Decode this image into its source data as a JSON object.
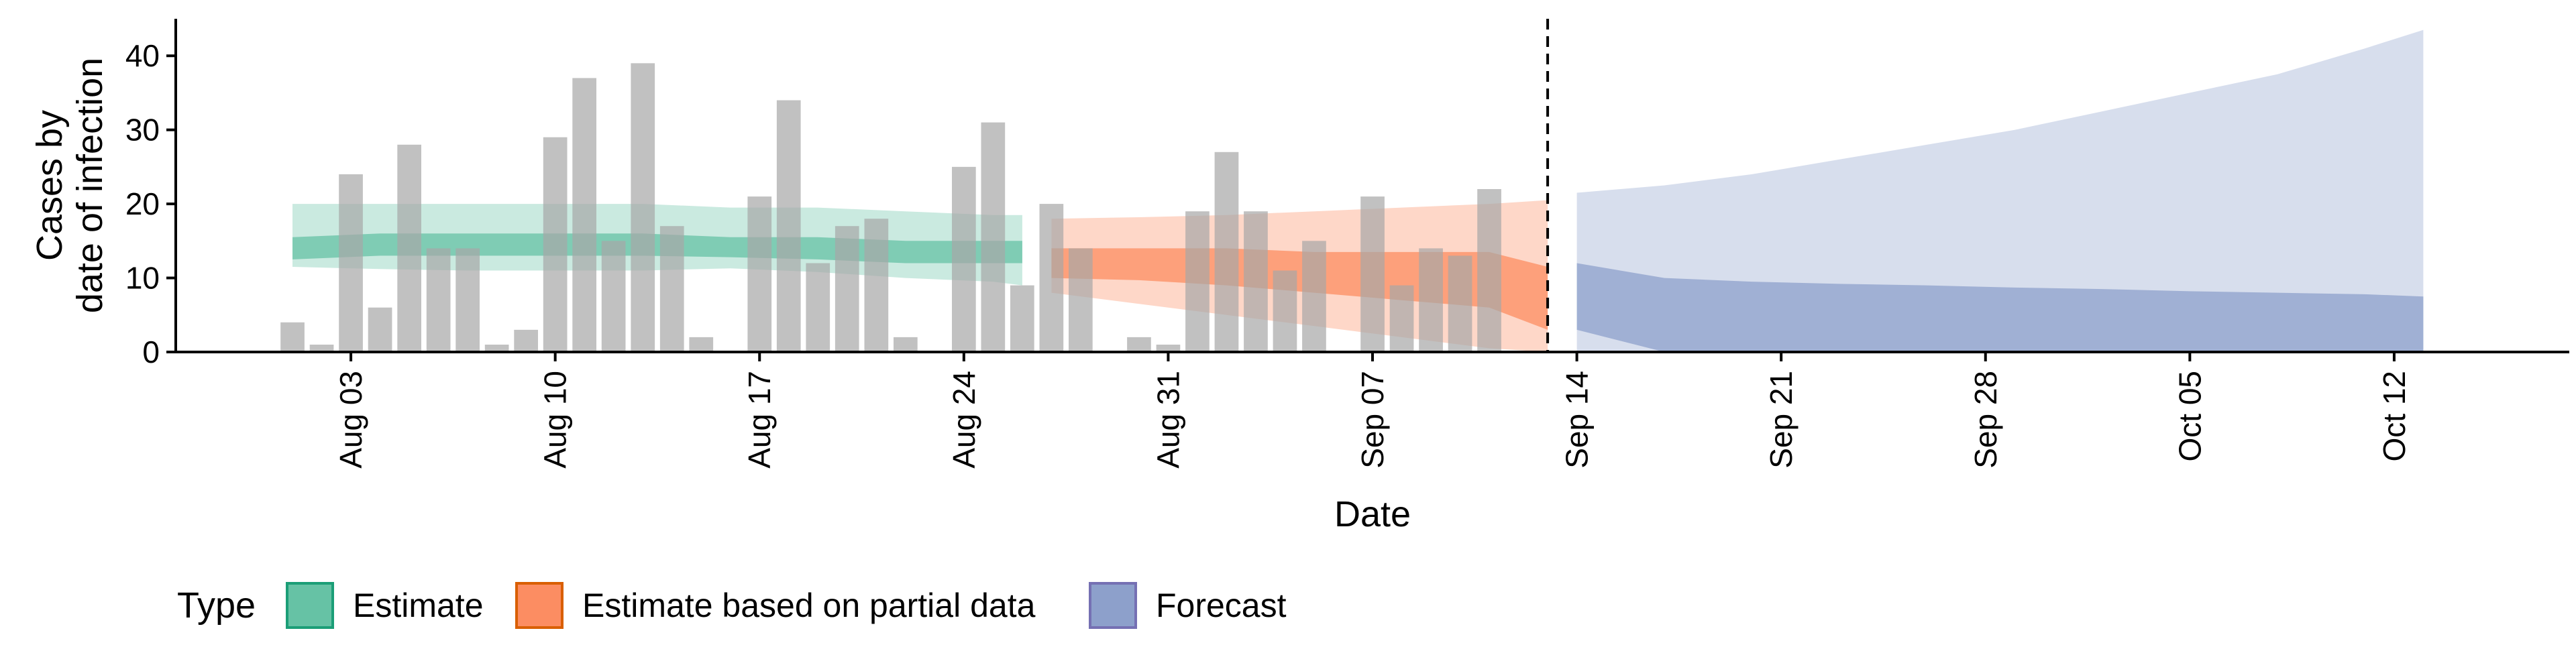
{
  "chart_data": {
    "type": "bar",
    "xlabel": "Date",
    "ylabel_lines": [
      "Cases by",
      "date of infection"
    ],
    "ylim": [
      0,
      45
    ],
    "y_ticks": [
      0,
      10,
      20,
      30,
      40
    ],
    "x_range": [
      "2024-07-28",
      "2024-10-18"
    ],
    "x_ticks": [
      {
        "date": "2024-08-03",
        "label": "Aug 03"
      },
      {
        "date": "2024-08-10",
        "label": "Aug 10"
      },
      {
        "date": "2024-08-17",
        "label": "Aug 17"
      },
      {
        "date": "2024-08-24",
        "label": "Aug 24"
      },
      {
        "date": "2024-08-31",
        "label": "Aug 31"
      },
      {
        "date": "2024-09-07",
        "label": "Sep 07"
      },
      {
        "date": "2024-09-14",
        "label": "Sep 14"
      },
      {
        "date": "2024-09-21",
        "label": "Sep 21"
      },
      {
        "date": "2024-09-28",
        "label": "Sep 28"
      },
      {
        "date": "2024-10-05",
        "label": "Oct 05"
      },
      {
        "date": "2024-10-12",
        "label": "Oct 12"
      }
    ],
    "cases_start_date": "2024-08-01",
    "cases": [
      4,
      1,
      24,
      6,
      28,
      14,
      14,
      1,
      3,
      29,
      37,
      15,
      39,
      17,
      2,
      0,
      21,
      34,
      12,
      17,
      18,
      2,
      0,
      25,
      31,
      9,
      20,
      14,
      0,
      2,
      1,
      19,
      27,
      19,
      11,
      15,
      0,
      21,
      9,
      14,
      13,
      22
    ],
    "forecast_start_line": "2024-09-13",
    "legend": {
      "title": "Type",
      "position": "bottom",
      "items": [
        {
          "label": "Estimate",
          "fill": "#66c2a5",
          "stroke": "#1b9e77"
        },
        {
          "label": "Estimate based on partial data",
          "fill": "#fc8d62",
          "stroke": "#d95f02"
        },
        {
          "label": "Forecast",
          "fill": "#8da0cb",
          "stroke": "#7570b3"
        }
      ]
    },
    "series": [
      {
        "name": "Estimate",
        "color": "#1b9e77",
        "x": [
          "2024-08-01",
          "2024-08-04",
          "2024-08-07",
          "2024-08-10",
          "2024-08-13",
          "2024-08-16",
          "2024-08-19",
          "2024-08-22",
          "2024-08-25",
          "2024-08-26"
        ],
        "lower90": [
          11.5,
          11.2,
          11,
          11,
          11,
          11.3,
          10.8,
          10,
          9.5,
          9
        ],
        "upper90": [
          20,
          20,
          20,
          20,
          20,
          19.5,
          19.5,
          19,
          18.5,
          18.5
        ],
        "lower50": [
          12.5,
          13,
          13,
          13,
          13,
          12.8,
          12.5,
          12,
          12,
          12
        ],
        "upper50": [
          15.5,
          16,
          16,
          16,
          16,
          15.5,
          15.5,
          15,
          15,
          15
        ]
      },
      {
        "name": "Estimate based on partial data",
        "color": "#d95f02",
        "x": [
          "2024-08-27",
          "2024-08-30",
          "2024-09-02",
          "2024-09-05",
          "2024-09-08",
          "2024-09-11",
          "2024-09-13"
        ],
        "lower90": [
          8,
          6.5,
          5,
          3.5,
          2,
          0.5,
          0
        ],
        "upper90": [
          18,
          18.2,
          18.5,
          19,
          19.5,
          20,
          20.5
        ],
        "lower50": [
          10,
          9.7,
          9,
          8,
          7,
          6,
          3
        ],
        "upper50": [
          14,
          14,
          14,
          13.5,
          13.5,
          13.5,
          11.5
        ]
      },
      {
        "name": "Forecast",
        "color": "#7570b3",
        "x": [
          "2024-09-14",
          "2024-09-17",
          "2024-09-20",
          "2024-09-23",
          "2024-09-26",
          "2024-09-29",
          "2024-10-02",
          "2024-10-05",
          "2024-10-08",
          "2024-10-11",
          "2024-10-13"
        ],
        "lower90": [
          0,
          0,
          0,
          0,
          0,
          0,
          0,
          0,
          0,
          0,
          0
        ],
        "upper90": [
          21.5,
          22.5,
          24,
          26,
          28,
          30,
          32.5,
          35,
          37.5,
          41,
          43.5
        ],
        "lower50": [
          3,
          0,
          0,
          0,
          0,
          0,
          0,
          0,
          0,
          0,
          0
        ],
        "upper50": [
          12,
          10,
          9.5,
          9.2,
          9,
          8.7,
          8.5,
          8.2,
          8,
          7.8,
          7.5
        ]
      }
    ]
  }
}
